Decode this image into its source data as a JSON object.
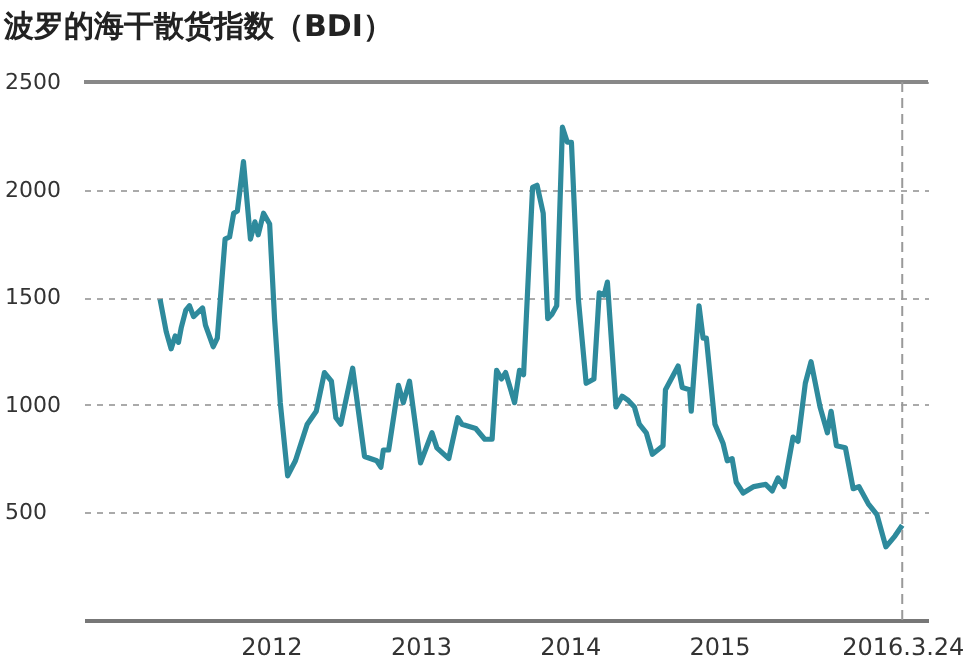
{
  "chart_data": {
    "type": "line",
    "title": "波罗的海干散货指数（BDI）",
    "x": [
      "2011-04-05",
      "2011-04-20",
      "2011-05-02",
      "2011-05-12",
      "2011-05-20",
      "2011-05-27",
      "2011-06-07",
      "2011-06-16",
      "2011-06-26",
      "2011-07-18",
      "2011-07-25",
      "2011-08-13",
      "2011-08-23",
      "2011-09-11",
      "2011-09-22",
      "2011-10-02",
      "2011-10-11",
      "2011-10-26",
      "2011-11-12",
      "2011-11-23",
      "2011-12-01",
      "2011-12-14",
      "2011-12-29",
      "2012-01-10",
      "2012-01-24",
      "2012-02-11",
      "2012-03-01",
      "2012-03-30",
      "2012-04-21",
      "2012-05-11",
      "2012-05-28",
      "2012-06-08",
      "2012-06-20",
      "2012-07-19",
      "2012-08-17",
      "2012-09-16",
      "2012-09-26",
      "2012-10-02",
      "2012-10-15",
      "2012-11-08",
      "2012-11-20",
      "2012-12-05",
      "2013-01-01",
      "2013-01-29",
      "2013-02-10",
      "2013-03-11",
      "2013-04-02",
      "2013-04-12",
      "2013-05-16",
      "2013-06-07",
      "2013-06-25",
      "2013-07-06",
      "2013-07-18",
      "2013-07-28",
      "2013-08-19",
      "2013-08-31",
      "2013-09-10",
      "2013-10-02",
      "2013-10-13",
      "2013-10-28",
      "2013-11-08",
      "2013-11-18",
      "2013-11-30",
      "2013-12-14",
      "2013-12-26",
      "2014-01-05",
      "2014-01-22",
      "2014-02-10",
      "2014-03-01",
      "2014-03-14",
      "2014-03-26",
      "2014-04-03",
      "2014-04-24",
      "2014-05-09",
      "2014-05-24",
      "2014-06-08",
      "2014-06-20",
      "2014-07-07",
      "2014-07-22",
      "2014-08-17",
      "2014-08-23",
      "2014-09-23",
      "2014-10-03",
      "2014-10-21",
      "2014-10-25",
      "2014-11-13",
      "2014-11-23",
      "2014-12-01",
      "2014-12-22",
      "2015-01-11",
      "2015-01-21",
      "2015-02-02",
      "2015-02-12",
      "2015-03-01",
      "2015-03-27",
      "2015-04-25",
      "2015-05-11",
      "2015-05-25",
      "2015-06-09",
      "2015-07-01",
      "2015-07-13",
      "2015-07-31",
      "2015-08-14",
      "2015-09-05",
      "2015-09-23",
      "2015-10-02",
      "2015-10-15",
      "2015-11-06",
      "2015-11-25",
      "2015-12-09",
      "2016-01-01",
      "2016-01-22",
      "2016-02-13",
      "2016-03-06",
      "2016-03-24"
    ],
    "series": [
      {
        "color": "#2e8a9c",
        "values": [
          1490,
          1340,
          1260,
          1320,
          1290,
          1360,
          1440,
          1460,
          1410,
          1450,
          1370,
          1270,
          1310,
          1770,
          1780,
          1890,
          1900,
          2130,
          1770,
          1850,
          1790,
          1890,
          1840,
          1400,
          1010,
          670,
          740,
          910,
          970,
          1150,
          1110,
          940,
          910,
          1170,
          760,
          740,
          710,
          790,
          790,
          1090,
          1010,
          1110,
          730,
          870,
          800,
          750,
          940,
          910,
          890,
          840,
          840,
          1160,
          1120,
          1150,
          1010,
          1160,
          1140,
          2010,
          2020,
          1890,
          1400,
          1420,
          1460,
          2290,
          2220,
          2220,
          1490,
          1100,
          1120,
          1520,
          1510,
          1570,
          990,
          1040,
          1020,
          990,
          910,
          870,
          770,
          810,
          1070,
          1180,
          1080,
          1070,
          970,
          1460,
          1310,
          1310,
          910,
          820,
          740,
          750,
          640,
          590,
          620,
          630,
          600,
          660,
          620,
          850,
          830,
          1100,
          1200,
          990,
          870,
          970,
          810,
          800,
          610,
          620,
          540,
          490,
          340,
          390,
          440
        ]
      }
    ],
    "xlim": [
      "2010-10-01",
      "2016-05-26"
    ],
    "xticks": [
      {
        "value": "2012-01-01",
        "label": "2012"
      },
      {
        "value": "2013-01-01",
        "label": "2013"
      },
      {
        "value": "2014-01-01",
        "label": "2014"
      },
      {
        "value": "2015-01-01",
        "label": "2015"
      },
      {
        "value": "2016-03-24",
        "label": "2016.3.24"
      }
    ],
    "ylim": [
      0,
      2500
    ],
    "yticks": [
      500,
      1000,
      1500,
      2000,
      2500
    ],
    "ref_lines": [
      {
        "axis": "x",
        "value": "2016-03-24",
        "line_style": "dashed",
        "color": "#999999"
      }
    ],
    "grid": "y",
    "marker": "none",
    "line_style": "solid"
  }
}
